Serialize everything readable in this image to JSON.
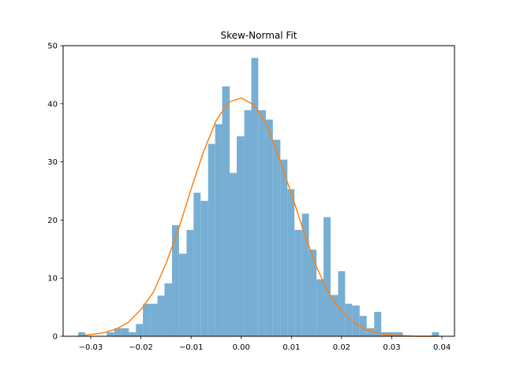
{
  "chart_data": {
    "type": "bar",
    "title": "Skew-Normal Fit",
    "xlabel": "",
    "ylabel": "",
    "xlim": [
      -0.0355,
      0.0425
    ],
    "ylim": [
      0,
      50
    ],
    "x_ticks": [
      -0.03,
      -0.02,
      -0.01,
      0.0,
      0.01,
      0.02,
      0.03,
      0.04
    ],
    "x_tick_labels": [
      "−0.03",
      "−0.02",
      "−0.01",
      "0.00",
      "0.01",
      "0.02",
      "0.03",
      "0.04"
    ],
    "y_ticks": [
      0,
      10,
      20,
      30,
      40,
      50
    ],
    "y_tick_labels": [
      "0",
      "10",
      "20",
      "30",
      "40",
      "50"
    ],
    "grid": false,
    "histogram": {
      "color": "#77aed3",
      "bin_edges": [
        -0.0325,
        -0.0311,
        -0.0296,
        -0.0282,
        -0.0268,
        -0.0253,
        -0.0239,
        -0.0224,
        -0.021,
        -0.0196,
        -0.0181,
        -0.0167,
        -0.0153,
        -0.0138,
        -0.0124,
        -0.0109,
        -0.0095,
        -0.0081,
        -0.0066,
        -0.0052,
        -0.0038,
        -0.0023,
        -0.0009,
        0.0006,
        0.002,
        0.0034,
        0.0049,
        0.0063,
        0.0078,
        0.0092,
        0.0106,
        0.0121,
        0.0135,
        0.015,
        0.0164,
        0.0178,
        0.0193,
        0.0207,
        0.0221,
        0.0236,
        0.025,
        0.0265,
        0.0279,
        0.0293,
        0.0308,
        0.0322,
        0.0336,
        0.0351,
        0.0365,
        0.038,
        0.0394
      ],
      "densities": [
        0.7,
        0,
        0,
        0,
        0.7,
        1.4,
        1.4,
        0.7,
        2.1,
        5.6,
        5.6,
        7.0,
        9.1,
        19.1,
        14.2,
        18.3,
        24.7,
        23.3,
        33.1,
        36.5,
        43.0,
        28.1,
        34.4,
        38.9,
        47.9,
        38.9,
        37.3,
        33.8,
        30.4,
        25.3,
        18.3,
        21.1,
        14.9,
        9.8,
        20.5,
        7.1,
        11.2,
        5.6,
        5.3,
        3.5,
        1.4,
        4.2,
        0.7,
        0.7,
        0.7,
        0,
        0,
        0,
        0,
        0.7
      ]
    },
    "series": [
      {
        "type": "line",
        "color": "#ff7f0e",
        "x": [
          -0.0325,
          -0.03,
          -0.0275,
          -0.025,
          -0.0225,
          -0.02,
          -0.0175,
          -0.015,
          -0.0125,
          -0.01,
          -0.0075,
          -0.005,
          -0.0025,
          0.0,
          0.0025,
          0.005,
          0.0075,
          0.01,
          0.0125,
          0.015,
          0.0175,
          0.02,
          0.0225,
          0.025,
          0.0275,
          0.03,
          0.0325,
          0.035,
          0.0375,
          0.039
        ],
        "y": [
          0.0,
          0.3,
          0.6,
          1.2,
          2.4,
          4.6,
          7.6,
          12.5,
          18.4,
          25.3,
          31.8,
          37.1,
          40.3,
          41.0,
          39.8,
          36.5,
          30.8,
          24.5,
          17.9,
          11.9,
          7.3,
          4.3,
          2.3,
          1.1,
          0.5,
          0.2,
          0.1,
          0.0,
          0.0,
          0.0
        ]
      }
    ]
  }
}
